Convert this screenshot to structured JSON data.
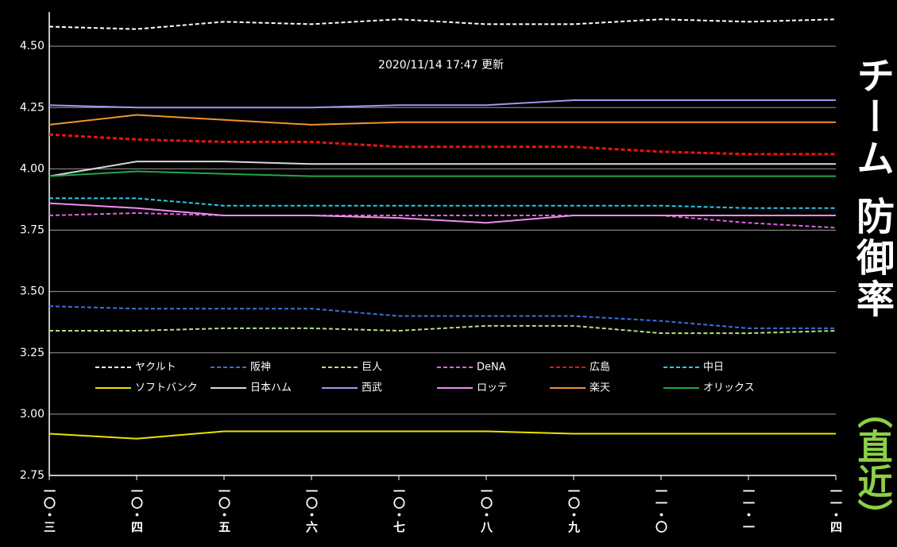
{
  "chart_data": {
    "type": "line",
    "subtitle": "2020/11/14  17:47 更新",
    "side_title": "チーム 防御率",
    "side_note": "（直近）",
    "categories": [
      "一〇・三",
      "一〇・四",
      "一〇・五",
      "一〇・六",
      "一〇・七",
      "一〇・八",
      "一〇・九",
      "一一・〇",
      "一一・一",
      "一一・四"
    ],
    "ylim": [
      2.75,
      4.64
    ],
    "yticks": [
      2.75,
      {
        "value": 3,
        "label": "3.00"
      },
      3.25,
      {
        "value": 3.5,
        "label": "3.50"
      },
      3.75,
      {
        "value": 4,
        "label": "4.00"
      },
      4.25,
      {
        "value": 4.5,
        "label": "4.50"
      }
    ],
    "grid": true,
    "series": [
      {
        "name": "ヤクルト",
        "color": "#ffffff",
        "dashed": true,
        "values": [
          4.58,
          4.57,
          4.6,
          4.59,
          4.61,
          4.59,
          4.59,
          4.61,
          4.6,
          4.61
        ]
      },
      {
        "name": "阪神",
        "color": "#3b6fe0",
        "dashed": true,
        "values": [
          3.44,
          3.43,
          3.43,
          3.43,
          3.4,
          3.4,
          3.4,
          3.38,
          3.35,
          3.35
        ]
      },
      {
        "name": "巨人",
        "color": "#b5e08a",
        "dashed": true,
        "values": [
          3.34,
          3.34,
          3.35,
          3.35,
          3.34,
          3.36,
          3.36,
          3.33,
          3.33,
          3.34
        ]
      },
      {
        "name": "DeNA",
        "color": "#e060e0",
        "dashed": true,
        "values": [
          3.81,
          3.82,
          3.81,
          3.81,
          3.81,
          3.81,
          3.81,
          3.81,
          3.78,
          3.76
        ]
      },
      {
        "name": "広島",
        "color": "#ee1111",
        "dashed": true,
        "values": [
          4.14,
          4.12,
          4.11,
          4.11,
          4.09,
          4.09,
          4.09,
          4.07,
          4.06,
          4.06
        ]
      },
      {
        "name": "中日",
        "color": "#22ccee",
        "dashed": true,
        "values": [
          3.88,
          3.88,
          3.85,
          3.85,
          3.85,
          3.85,
          3.85,
          3.85,
          3.84,
          3.84
        ]
      },
      {
        "name": "ソフトバンク",
        "color": "#f0e000",
        "dashed": false,
        "values": [
          2.92,
          2.9,
          2.93,
          2.93,
          2.93,
          2.93,
          2.92,
          2.92,
          2.92,
          2.92
        ]
      },
      {
        "name": "日本ハム",
        "color": "#d8d8d8",
        "dashed": false,
        "values": [
          3.97,
          4.03,
          4.03,
          4.02,
          4.02,
          4.02,
          4.02,
          4.02,
          4.02,
          4.02
        ]
      },
      {
        "name": "西武",
        "color": "#9a9af0",
        "dashed": false,
        "values": [
          4.26,
          4.25,
          4.25,
          4.25,
          4.26,
          4.26,
          4.28,
          4.28,
          4.28,
          4.28
        ]
      },
      {
        "name": "ロッテ",
        "color": "#f08cf0",
        "dashed": false,
        "values": [
          3.86,
          3.84,
          3.81,
          3.81,
          3.8,
          3.78,
          3.81,
          3.81,
          3.81,
          3.81
        ]
      },
      {
        "name": "楽天",
        "color": "#f0922e",
        "dashed": false,
        "values": [
          4.18,
          4.22,
          4.2,
          4.18,
          4.19,
          4.19,
          4.19,
          4.19,
          4.19,
          4.19
        ]
      },
      {
        "name": "オリックス",
        "color": "#1aaa4a",
        "dashed": false,
        "values": [
          3.97,
          3.99,
          3.98,
          3.97,
          3.97,
          3.97,
          3.97,
          3.97,
          3.97,
          3.97
        ]
      }
    ]
  }
}
